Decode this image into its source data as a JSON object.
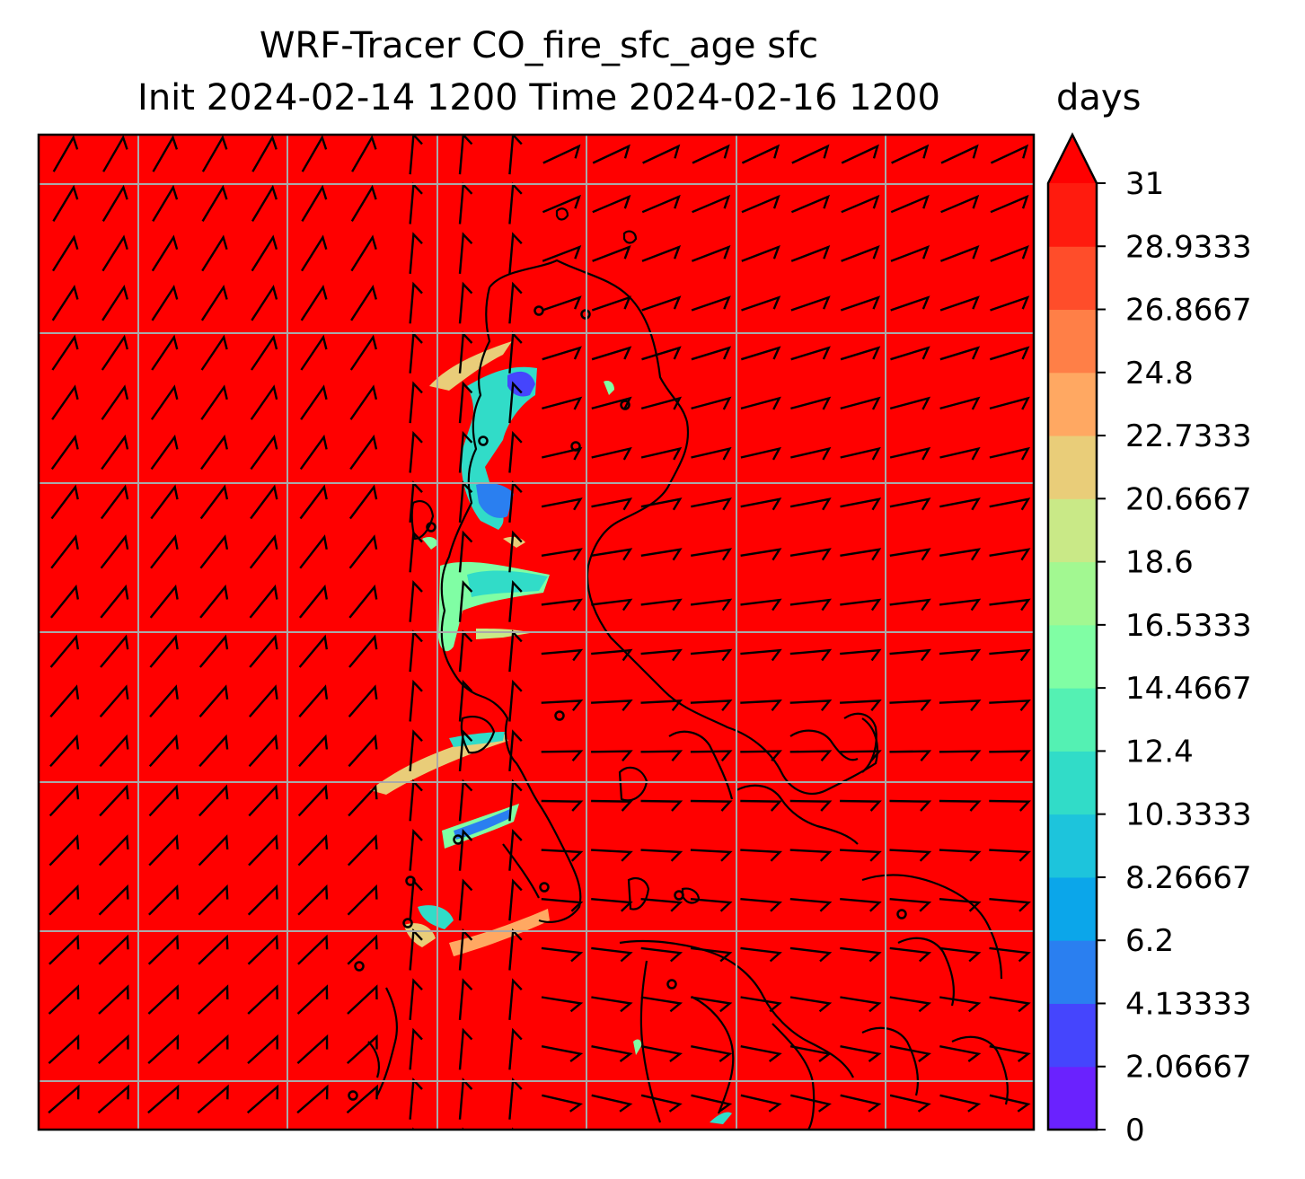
{
  "title": {
    "line1": "WRF-Tracer CO_fire_sfc_age sfc",
    "line2": "Init 2024-02-14 1200 Time 2024-02-16 1200"
  },
  "colorbar": {
    "units": "days",
    "ticks": [
      "0",
      "2.06667",
      "4.13333",
      "6.2",
      "8.26667",
      "10.3333",
      "12.4",
      "14.4667",
      "16.5333",
      "18.6",
      "20.6667",
      "22.7333",
      "24.8",
      "26.8667",
      "28.9333",
      "31"
    ],
    "min": 0,
    "max": 31,
    "extend": "max",
    "colors": [
      "#6a22fe",
      "#4545fd",
      "#2a7ff0",
      "#0ba6ea",
      "#1dc4dc",
      "#31dcc8",
      "#54f1b3",
      "#80fea4",
      "#a2f891",
      "#c9e987",
      "#e9cd79",
      "#ffa862",
      "#ff7f47",
      "#ff4d2a",
      "#ff1b0e"
    ],
    "extend_color": "#ff0000"
  },
  "map": {
    "background_color": "#ff0000",
    "coastline_color": "#000000",
    "gridline_color": "#aaaaaa",
    "wind_barbs": "black",
    "low_age_plumes": [
      {
        "age_days": 4,
        "color": "#4545fd"
      },
      {
        "age_days": 12,
        "color": "#31dcc8"
      },
      {
        "age_days": 16,
        "color": "#80fea4"
      },
      {
        "age_days": 22,
        "color": "#e9cd79"
      }
    ]
  }
}
